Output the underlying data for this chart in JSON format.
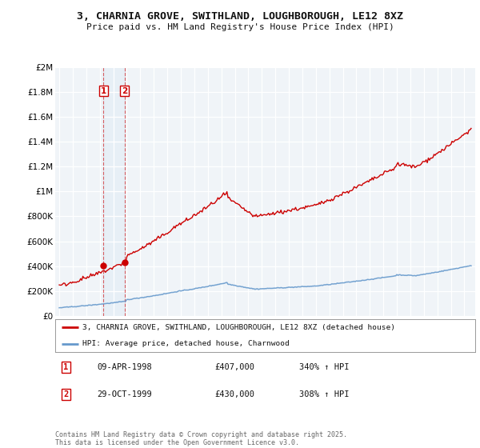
{
  "title": "3, CHARNIA GROVE, SWITHLAND, LOUGHBOROUGH, LE12 8XZ",
  "subtitle": "Price paid vs. HM Land Registry's House Price Index (HPI)",
  "legend_line1": "3, CHARNIA GROVE, SWITHLAND, LOUGHBOROUGH, LE12 8XZ (detached house)",
  "legend_line2": "HPI: Average price, detached house, Charnwood",
  "sale1_date": "09-APR-1998",
  "sale1_price": "£407,000",
  "sale1_hpi": "340% ↑ HPI",
  "sale1_year": 1998.27,
  "sale1_value": 407000,
  "sale2_date": "29-OCT-1999",
  "sale2_price": "£430,000",
  "sale2_hpi": "308% ↑ HPI",
  "sale2_year": 1999.83,
  "sale2_value": 430000,
  "ylabel_ticks": [
    "£0",
    "£200K",
    "£400K",
    "£600K",
    "£800K",
    "£1M",
    "£1.2M",
    "£1.4M",
    "£1.6M",
    "£1.8M",
    "£2M"
  ],
  "ylabel_values": [
    0,
    200000,
    400000,
    600000,
    800000,
    1000000,
    1200000,
    1400000,
    1600000,
    1800000,
    2000000
  ],
  "ylim": [
    0,
    2000000
  ],
  "xlim_start": 1994.7,
  "xlim_end": 2025.8,
  "background_color": "#ffffff",
  "plot_bg_color": "#f0f4f8",
  "grid_color": "#ffffff",
  "red_color": "#cc0000",
  "blue_color": "#6699cc",
  "footer": "Contains HM Land Registry data © Crown copyright and database right 2025.\nThis data is licensed under the Open Government Licence v3.0."
}
